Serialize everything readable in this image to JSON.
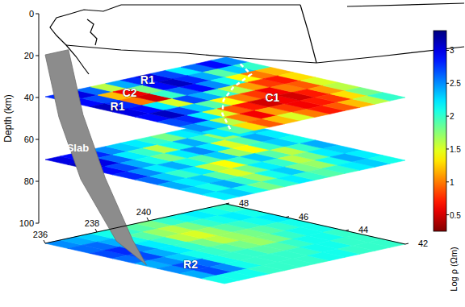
{
  "chart_data": {
    "type": "heatmap",
    "zlabel": "Depth (km)",
    "xlim": [
      236,
      243
    ],
    "xticks": [
      236,
      238,
      240
    ],
    "ylim": [
      42,
      48
    ],
    "yticks": [
      42,
      44,
      46,
      48
    ],
    "zlim": [
      0,
      100
    ],
    "zticks": [
      0,
      20,
      40,
      60,
      80,
      100
    ],
    "colorbar": {
      "label": "Log ρ (Ωm)",
      "lim": [
        0.25,
        3.3
      ],
      "ticks": [
        0.5,
        1,
        1.5,
        2,
        2.5,
        3
      ]
    },
    "slices": [
      {
        "depth": 30,
        "cells": [
          [
            2.8,
            3.0,
            2.6,
            1.6,
            2.4,
            2.8,
            3.0,
            2.7,
            2.2,
            2.6,
            2.9,
            2.5
          ],
          [
            2.9,
            2.7,
            1.2,
            0.6,
            1.8,
            2.9,
            3.1,
            2.8,
            2.4,
            1.9,
            2.3,
            2.0
          ],
          [
            3.1,
            2.8,
            1.0,
            0.5,
            2.0,
            2.6,
            2.9,
            2.5,
            2.1,
            1.4,
            1.0,
            1.2
          ],
          [
            3.0,
            2.9,
            2.2,
            1.5,
            2.7,
            2.4,
            2.0,
            1.6,
            1.1,
            0.8,
            0.7,
            1.3
          ],
          [
            2.9,
            3.1,
            2.7,
            2.3,
            1.9,
            1.4,
            1.0,
            0.8,
            0.6,
            1.0,
            0.9,
            1.5
          ],
          [
            2.7,
            2.8,
            2.2,
            1.5,
            0.9,
            0.7,
            0.5,
            0.6,
            0.5,
            0.7,
            1.1,
            1.6
          ],
          [
            2.5,
            2.3,
            1.6,
            1.0,
            0.6,
            1.1,
            0.8,
            0.6,
            0.7,
            0.8,
            1.3,
            1.8
          ],
          [
            2.2,
            1.9,
            1.3,
            0.9,
            1.2,
            1.5,
            1.0,
            0.7,
            0.9,
            1.2,
            1.6,
            2.0
          ]
        ]
      },
      {
        "depth": 60,
        "cells": [
          [
            3.0,
            2.9,
            2.8,
            2.5,
            2.3,
            2.2,
            2.0,
            1.8,
            2.2,
            2.3,
            2.0,
            2.1
          ],
          [
            3.1,
            3.0,
            2.6,
            2.2,
            2.0,
            1.6,
            2.1,
            2.4,
            2.0,
            1.7,
            2.2,
            2.3
          ],
          [
            2.9,
            2.7,
            2.4,
            2.1,
            1.8,
            2.2,
            2.5,
            2.2,
            1.5,
            1.9,
            2.4,
            2.2
          ],
          [
            2.8,
            2.5,
            2.2,
            2.4,
            2.1,
            1.9,
            2.3,
            1.7,
            1.4,
            2.0,
            2.3,
            2.1
          ],
          [
            2.6,
            2.3,
            2.0,
            2.2,
            1.6,
            1.4,
            2.0,
            2.3,
            1.9,
            1.6,
            2.0,
            2.4
          ],
          [
            2.4,
            2.2,
            2.3,
            1.9,
            1.5,
            1.8,
            2.2,
            2.0,
            1.6,
            1.8,
            2.2,
            2.3
          ],
          [
            2.3,
            2.1,
            2.4,
            2.0,
            1.7,
            2.1,
            2.3,
            1.8,
            1.7,
            2.1,
            2.4,
            2.2
          ],
          [
            2.2,
            2.3,
            2.1,
            1.8,
            2.0,
            2.2,
            2.0,
            1.9,
            2.0,
            2.2,
            2.3,
            2.1
          ]
        ]
      },
      {
        "depth": 100,
        "cells": [
          [
            2.5,
            2.4,
            2.3,
            2.1,
            2.0,
            1.9,
            1.8,
            2.0,
            2.1,
            2.2,
            2.1,
            2.0
          ],
          [
            2.6,
            2.6,
            2.4,
            2.1,
            1.9,
            1.7,
            1.6,
            1.8,
            2.0,
            2.1,
            2.2,
            2.1
          ],
          [
            2.7,
            2.8,
            2.5,
            2.2,
            2.0,
            1.6,
            1.5,
            1.7,
            1.9,
            2.0,
            2.1,
            2.2
          ],
          [
            2.6,
            2.7,
            2.4,
            2.2,
            2.0,
            1.8,
            1.6,
            1.7,
            1.8,
            1.9,
            2.0,
            2.1
          ],
          [
            2.4,
            2.5,
            2.3,
            2.1,
            2.0,
            1.9,
            1.8,
            1.7,
            1.8,
            2.0,
            2.1,
            2.1
          ],
          [
            2.5,
            2.7,
            2.6,
            2.1,
            2.0,
            2.0,
            1.9,
            1.9,
            2.0,
            2.1,
            2.1,
            2.0
          ],
          [
            2.4,
            2.7,
            2.5,
            2.1,
            2.0,
            2.0,
            2.0,
            2.0,
            2.1,
            2.1,
            2.0,
            2.0
          ],
          [
            2.1,
            2.1,
            2.1,
            2.0,
            2.0,
            2.0,
            2.0,
            2.1,
            2.1,
            2.0,
            2.0,
            2.0
          ]
        ]
      }
    ],
    "annotations": [
      {
        "text": "R1",
        "lon": 236.6,
        "lat": 46.1,
        "depth": 30
      },
      {
        "text": "C2",
        "lon": 238.0,
        "lat": 46.9,
        "depth": 30
      },
      {
        "text": "R1",
        "lon": 239.5,
        "lat": 47.6,
        "depth": 30
      },
      {
        "text": "C1",
        "lon": 240.4,
        "lat": 44.2,
        "depth": 30
      },
      {
        "text": "Slab",
        "lon": 236.8,
        "lat": 47.6,
        "depth": 55
      },
      {
        "text": "R2",
        "lon": 237.0,
        "lat": 44.0,
        "depth": 100
      }
    ]
  }
}
